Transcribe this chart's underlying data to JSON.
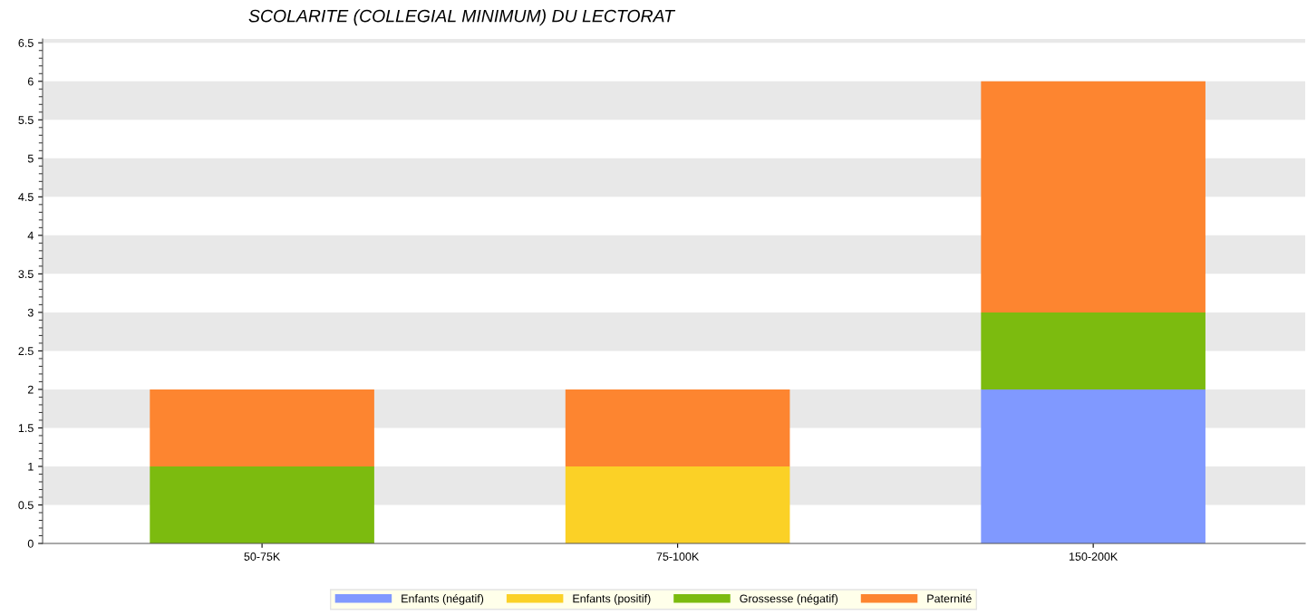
{
  "chart_data": {
    "type": "bar",
    "title": "SCOLARITE (COLLEGIAL MINIMUM) DU LECTORAT",
    "categories": [
      "50-75K",
      "75-100K",
      "150-200K"
    ],
    "stacked": true,
    "series": [
      {
        "name": "Enfants (négatif)",
        "color": "#8099ff",
        "values": [
          0,
          0,
          2
        ]
      },
      {
        "name": "Enfants (positif)",
        "color": "#fbd126",
        "values": [
          0,
          1,
          0
        ]
      },
      {
        "name": "Grossesse (négatif)",
        "color": "#7cbb0f",
        "values": [
          1,
          0,
          1
        ]
      },
      {
        "name": "Paternité",
        "color": "#fd8530",
        "values": [
          1,
          1,
          3
        ]
      }
    ],
    "ylim": [
      0,
      6.55
    ],
    "yticks": [
      0,
      0.5,
      1,
      1.5,
      2,
      2.5,
      3,
      3.5,
      4,
      4.5,
      5,
      5.5,
      6,
      6.5
    ],
    "legend": "bottom",
    "bands": [
      {
        "axis": "y",
        "from": 0.5,
        "to": 1,
        "color": "#e8e8e8"
      },
      {
        "axis": "y",
        "from": 1.5,
        "to": 2,
        "color": "#e8e8e8"
      },
      {
        "axis": "y",
        "from": 2.5,
        "to": 3,
        "color": "#e8e8e8"
      },
      {
        "axis": "y",
        "from": 3.5,
        "to": 4,
        "color": "#e8e8e8"
      },
      {
        "axis": "y",
        "from": 4.5,
        "to": 5,
        "color": "#e8e8e8"
      },
      {
        "axis": "y",
        "from": 5.5,
        "to": 6,
        "color": "#e8e8e8"
      },
      {
        "axis": "y",
        "from": 6.5,
        "to": 6.55,
        "color": "#e8e8e8"
      }
    ]
  }
}
